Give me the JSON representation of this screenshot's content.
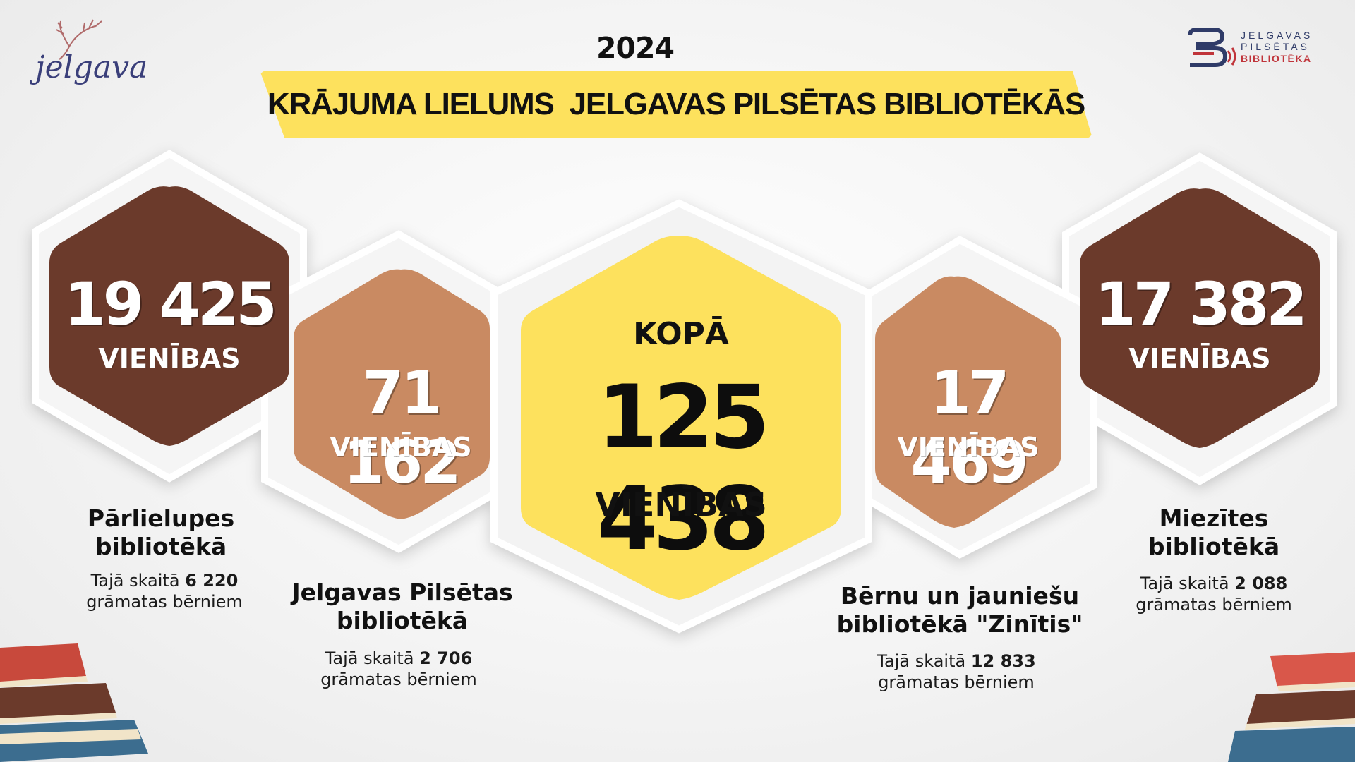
{
  "header": {
    "year": "2024",
    "title": "KRĀJUMA LIELUMS  JELGAVAS PILSĒTAS BIBLIOTĒKĀS"
  },
  "logos": {
    "left_text": "jelgava",
    "right_line1": "JELGAVAS",
    "right_line2": "PILSĒTAS",
    "right_line3": "BIBLIOTĒKA"
  },
  "total": {
    "label": "KOPĀ",
    "value": "125 438",
    "unit": "VIENĪBAS"
  },
  "libraries": [
    {
      "value": "19 425",
      "unit": "VIENĪBAS",
      "title_line1": "Pārlielupes",
      "title_line2": "bibliotēkā",
      "note_prefix": "Tajā skaitā ",
      "note_value": "6 220",
      "note_suffix": "grāmatas bērniem"
    },
    {
      "value": "71 162",
      "unit": "VIENĪBAS",
      "title_line1": "Jelgavas Pilsētas",
      "title_line2": "bibliotēkā",
      "note_prefix": "Tajā skaitā ",
      "note_value": "2 706",
      "note_suffix": "grāmatas bērniem"
    },
    {
      "value": "17 469",
      "unit": "VIENĪBAS",
      "title_line1": "Bērnu un jauniešu",
      "title_line2": "bibliotēkā \"Zinītis\"",
      "note_prefix": "Tajā skaitā ",
      "note_value": "12 833",
      "note_suffix": "grāmatas bērniem"
    },
    {
      "value": "17 382",
      "unit": "VIENĪBAS",
      "title_line1": "Miezītes",
      "title_line2": "bibliotēkā",
      "note_prefix": "Tajā skaitā ",
      "note_value": "2 088",
      "note_suffix": "grāmatas bērniem"
    }
  ],
  "colors": {
    "dark_brown": "#6b3a2b",
    "light_brown": "#c98a62",
    "yellow": "#fde15d",
    "frame": "#ffffff"
  }
}
